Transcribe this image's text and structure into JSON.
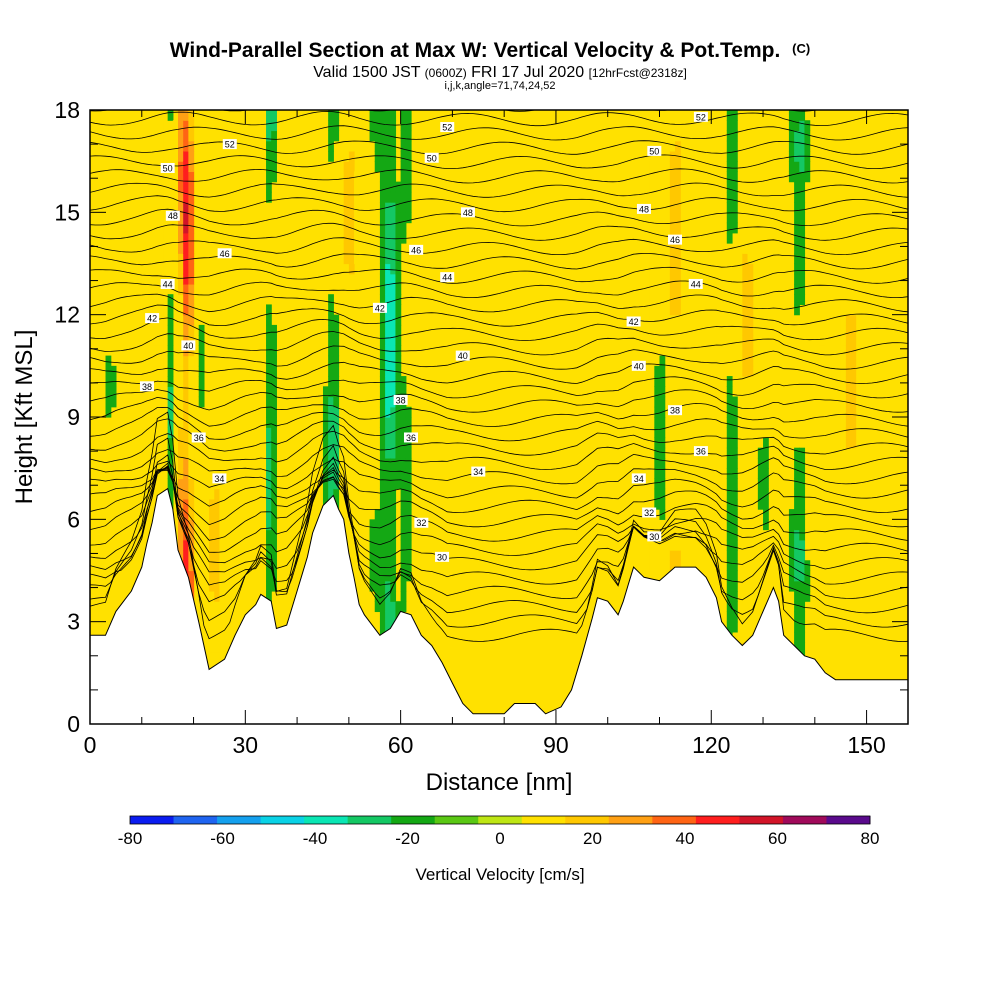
{
  "chart_data": {
    "type": "heatmap",
    "title": "Wind-Parallel Section at Max W: Vertical Velocity & Pot.Temp.",
    "title_units": "(C)",
    "subtitle": {
      "valid": "Valid 1500 JST",
      "utc": "(0600Z)",
      "date": "FRI 17 Jul 2020",
      "forecast": "[12hrFcst@2318z]",
      "indices": "i,j,k,angle=71,74,24,52"
    },
    "xlabel": "Distance [nm]",
    "ylabel": "Height [Kft MSL]",
    "xlim": [
      0,
      158
    ],
    "ylim": [
      0,
      18
    ],
    "x_ticks": [
      "0",
      "30",
      "60",
      "90",
      "120",
      "150"
    ],
    "y_ticks": [
      "0",
      "3",
      "6",
      "9",
      "12",
      "15",
      "18"
    ],
    "colorbar": {
      "label": "Vertical Velocity [cm/s]",
      "tick_labels": [
        "-80",
        "-60",
        "-40",
        "-20",
        "0",
        "20",
        "40",
        "60",
        "80"
      ],
      "levels": [
        -80,
        -70,
        -60,
        -50,
        -40,
        -30,
        -20,
        -10,
        0,
        10,
        20,
        30,
        40,
        50,
        60,
        70,
        80
      ],
      "colors": [
        "#0a1cf0",
        "#1f64f0",
        "#14a0ee",
        "#0ad2e6",
        "#0ae6b4",
        "#14c864",
        "#14a814",
        "#5ac814",
        "#bee614",
        "#ffe100",
        "#ffc800",
        "#ffa014",
        "#ff6414",
        "#ff1e1e",
        "#d21428",
        "#a00a5a",
        "#5a0a8c"
      ]
    },
    "terrain_height_kft": [
      [
        0,
        2.6
      ],
      [
        3,
        2.6
      ],
      [
        5,
        3.3
      ],
      [
        8,
        3.9
      ],
      [
        10,
        4.6
      ],
      [
        11,
        5.3
      ],
      [
        12,
        5.9
      ],
      [
        13,
        6.7
      ],
      [
        15,
        6.9
      ],
      [
        16,
        6.3
      ],
      [
        17,
        5.1
      ],
      [
        19,
        4.3
      ],
      [
        21,
        3.0
      ],
      [
        22,
        2.3
      ],
      [
        23,
        1.6
      ],
      [
        26,
        1.9
      ],
      [
        28,
        2.6
      ],
      [
        30,
        3.2
      ],
      [
        32,
        3.5
      ],
      [
        33,
        3.8
      ],
      [
        35,
        3.6
      ],
      [
        36,
        2.8
      ],
      [
        38,
        2.9
      ],
      [
        40,
        3.9
      ],
      [
        42,
        4.9
      ],
      [
        43,
        5.6
      ],
      [
        45,
        6.4
      ],
      [
        47,
        6.7
      ],
      [
        48,
        6.3
      ],
      [
        49,
        6.0
      ],
      [
        50,
        5.0
      ],
      [
        51,
        4.3
      ],
      [
        52,
        3.5
      ],
      [
        53,
        3.2
      ],
      [
        56,
        2.6
      ],
      [
        58,
        2.8
      ],
      [
        60,
        3.3
      ],
      [
        62,
        3.2
      ],
      [
        64,
        2.6
      ],
      [
        66,
        2.3
      ],
      [
        68,
        1.8
      ],
      [
        70,
        1.2
      ],
      [
        72,
        0.6
      ],
      [
        74,
        0.3
      ],
      [
        80,
        0.3
      ],
      [
        82,
        0.6
      ],
      [
        86,
        0.6
      ],
      [
        88,
        0.3
      ],
      [
        91,
        0.5
      ],
      [
        93,
        1.0
      ],
      [
        95,
        2.0
      ],
      [
        97,
        3.1
      ],
      [
        98,
        3.7
      ],
      [
        100,
        3.6
      ],
      [
        102,
        3.2
      ],
      [
        103,
        3.6
      ],
      [
        104,
        4.1
      ],
      [
        105,
        4.6
      ],
      [
        107,
        4.3
      ],
      [
        110,
        4.2
      ],
      [
        113,
        4.6
      ],
      [
        117,
        4.6
      ],
      [
        119,
        4.3
      ],
      [
        121,
        3.7
      ],
      [
        122,
        3.0
      ],
      [
        124,
        2.6
      ],
      [
        126,
        2.3
      ],
      [
        128,
        2.6
      ],
      [
        130,
        3.3
      ],
      [
        132,
        4.0
      ],
      [
        133,
        3.6
      ],
      [
        134,
        2.6
      ],
      [
        136,
        2.3
      ],
      [
        138,
        2.0
      ],
      [
        140,
        1.9
      ],
      [
        142,
        1.5
      ],
      [
        144,
        1.3
      ],
      [
        146,
        1.3
      ],
      [
        158,
        1.3
      ]
    ],
    "contour_labels": [
      {
        "text": "52",
        "x": 27,
        "y": 17.0
      },
      {
        "text": "52",
        "x": 69,
        "y": 17.5
      },
      {
        "text": "52",
        "x": 118,
        "y": 17.8
      },
      {
        "text": "50",
        "x": 15,
        "y": 16.3
      },
      {
        "text": "50",
        "x": 66,
        "y": 16.6
      },
      {
        "text": "50",
        "x": 109,
        "y": 16.8
      },
      {
        "text": "48",
        "x": 16,
        "y": 14.9
      },
      {
        "text": "48",
        "x": 73,
        "y": 15.0
      },
      {
        "text": "48",
        "x": 107,
        "y": 15.1
      },
      {
        "text": "46",
        "x": 26,
        "y": 13.8
      },
      {
        "text": "46",
        "x": 63,
        "y": 13.9
      },
      {
        "text": "46",
        "x": 113,
        "y": 14.2
      },
      {
        "text": "44",
        "x": 15,
        "y": 12.9
      },
      {
        "text": "44",
        "x": 69,
        "y": 13.1
      },
      {
        "text": "44",
        "x": 117,
        "y": 12.9
      },
      {
        "text": "42",
        "x": 12,
        "y": 11.9
      },
      {
        "text": "42",
        "x": 56,
        "y": 12.2
      },
      {
        "text": "42",
        "x": 105,
        "y": 11.8
      },
      {
        "text": "40",
        "x": 19,
        "y": 11.1
      },
      {
        "text": "40",
        "x": 72,
        "y": 10.8
      },
      {
        "text": "40",
        "x": 106,
        "y": 10.5
      },
      {
        "text": "38",
        "x": 11,
        "y": 9.9
      },
      {
        "text": "38",
        "x": 60,
        "y": 9.5
      },
      {
        "text": "38",
        "x": 113,
        "y": 9.2
      },
      {
        "text": "36",
        "x": 21,
        "y": 8.4
      },
      {
        "text": "36",
        "x": 62,
        "y": 8.4
      },
      {
        "text": "36",
        "x": 118,
        "y": 8.0
      },
      {
        "text": "34",
        "x": 25,
        "y": 7.2
      },
      {
        "text": "34",
        "x": 75,
        "y": 7.4
      },
      {
        "text": "34",
        "x": 106,
        "y": 7.2
      },
      {
        "text": "32",
        "x": 64,
        "y": 5.9
      },
      {
        "text": "32",
        "x": 108,
        "y": 6.2
      },
      {
        "text": "30",
        "x": 68,
        "y": 4.9
      },
      {
        "text": "30",
        "x": 109,
        "y": 5.5
      }
    ]
  }
}
